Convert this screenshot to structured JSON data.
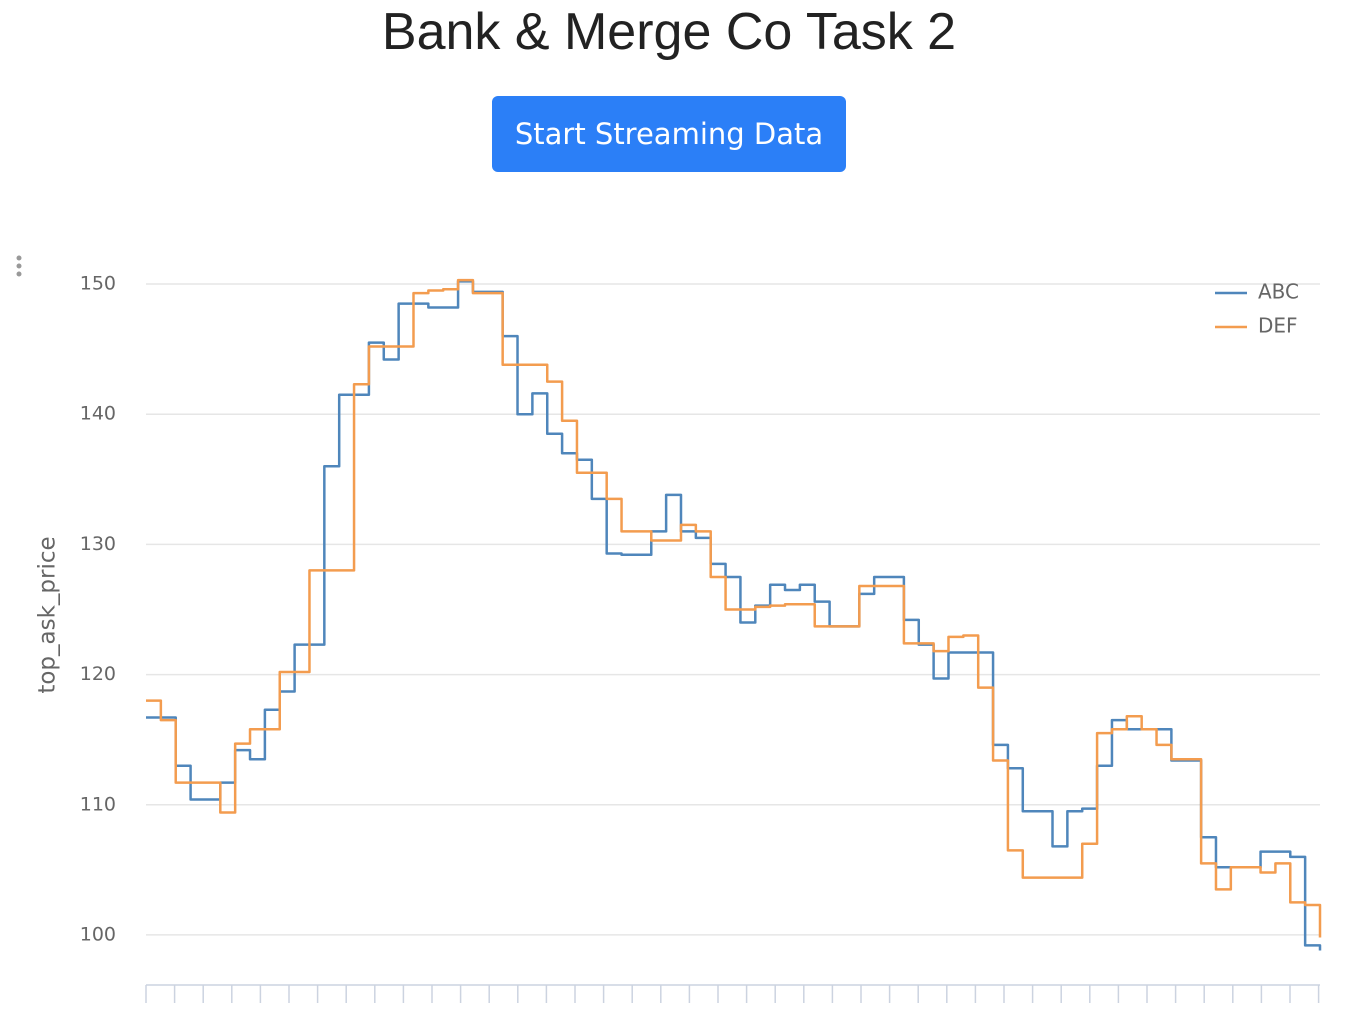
{
  "header": {
    "title": "Bank & Merge Co Task 2",
    "button": "Start Streaming Data"
  },
  "chart_data": {
    "type": "line",
    "ylabel": "top_ask_price",
    "ylim": [
      96,
      152
    ],
    "yticks": [
      100,
      110,
      120,
      130,
      140,
      150
    ],
    "grid": true,
    "legend": "top-right",
    "series": [
      {
        "name": "ABC",
        "color": "#4f86bb",
        "values": [
          116.7,
          116.7,
          113,
          110.4,
          110.4,
          111.7,
          114.2,
          113.5,
          117.3,
          118.7,
          122.3,
          122.3,
          136,
          141.5,
          141.5,
          145.5,
          144.2,
          148.5,
          148.5,
          148.2,
          148.2,
          150.2,
          149.4,
          149.4,
          146,
          140,
          141.6,
          138.5,
          137,
          136.5,
          133.5,
          129.3,
          129.2,
          129.2,
          131,
          133.8,
          131,
          130.5,
          128.5,
          127.5,
          124,
          125.3,
          126.9,
          126.5,
          126.9,
          125.6,
          123.7,
          123.7,
          126.2,
          127.5,
          127.5,
          124.2,
          122.3,
          119.7,
          121.7,
          121.7,
          121.7,
          114.6,
          112.8,
          109.5,
          109.5,
          106.8,
          109.5,
          109.7,
          113,
          116.5,
          115.8,
          115.8,
          115.8,
          113.4,
          113.4,
          107.5,
          105.2,
          105.2,
          105.2,
          106.4,
          106.4,
          106,
          99.2,
          98.8
        ]
      },
      {
        "name": "DEF",
        "color": "#f39c4f",
        "values": [
          118,
          116.5,
          111.7,
          111.7,
          111.7,
          109.4,
          114.7,
          115.8,
          115.8,
          120.2,
          120.2,
          128,
          128,
          128,
          142.3,
          145.2,
          145.2,
          145.2,
          149.3,
          149.5,
          149.6,
          150.3,
          149.3,
          149.3,
          143.8,
          143.8,
          143.8,
          142.5,
          139.5,
          135.5,
          135.5,
          133.5,
          131,
          131,
          130.3,
          130.3,
          131.5,
          131,
          127.5,
          125,
          125,
          125.2,
          125.3,
          125.4,
          125.4,
          123.7,
          123.7,
          123.7,
          126.8,
          126.8,
          126.8,
          122.4,
          122.4,
          121.8,
          122.9,
          123,
          119,
          113.4,
          106.5,
          104.4,
          104.4,
          104.4,
          104.4,
          107,
          115.5,
          115.8,
          116.8,
          115.8,
          114.6,
          113.5,
          113.5,
          105.5,
          103.5,
          105.2,
          105.2,
          104.8,
          105.5,
          102.5,
          102.3,
          99.8
        ]
      }
    ]
  }
}
